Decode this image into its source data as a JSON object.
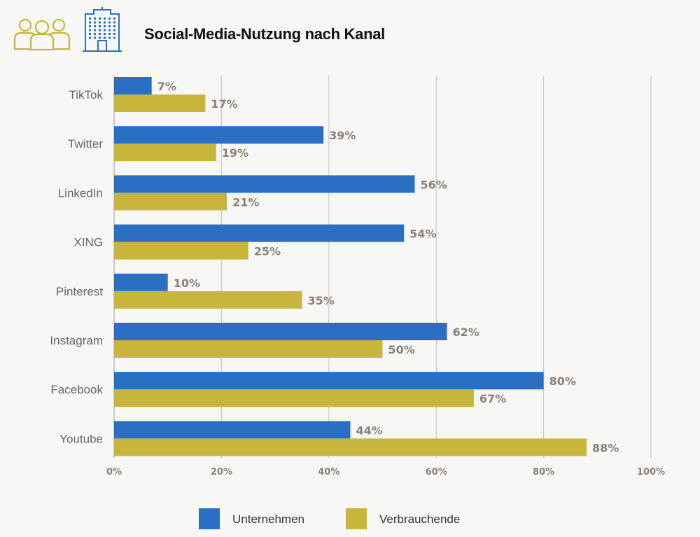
{
  "header": {
    "title": "Social-Media-Nutzung nach Kanal",
    "icons": [
      "people-group-icon",
      "office-building-icon"
    ]
  },
  "colors": {
    "unternehmen": "#2b6fc4",
    "verbrauchende": "#c8b53b",
    "grid": "#c8c8c8",
    "label": "#8a8178",
    "category": "#666666",
    "background": "#f7f7f6"
  },
  "chart_data": {
    "type": "bar",
    "orientation": "horizontal",
    "title": "Social-Media-Nutzung nach Kanal",
    "categories": [
      "TikTok",
      "Twitter",
      "LinkedIn",
      "XING",
      "Pinterest",
      "Instagram",
      "Facebook",
      "Youtube"
    ],
    "series": [
      {
        "name": "Unternehmen",
        "values": [
          7,
          39,
          56,
          54,
          10,
          62,
          80,
          44
        ]
      },
      {
        "name": "Verbrauchende",
        "values": [
          17,
          19,
          21,
          25,
          35,
          50,
          67,
          88
        ]
      }
    ],
    "xlim": [
      0,
      100
    ],
    "xticks": [
      0,
      20,
      40,
      60,
      80,
      100
    ],
    "tick_suffix": "%",
    "value_suffix": "%",
    "grid": true,
    "legend_position": "bottom"
  },
  "legend": [
    {
      "label": "Unternehmen"
    },
    {
      "label": "Verbrauchende"
    }
  ]
}
